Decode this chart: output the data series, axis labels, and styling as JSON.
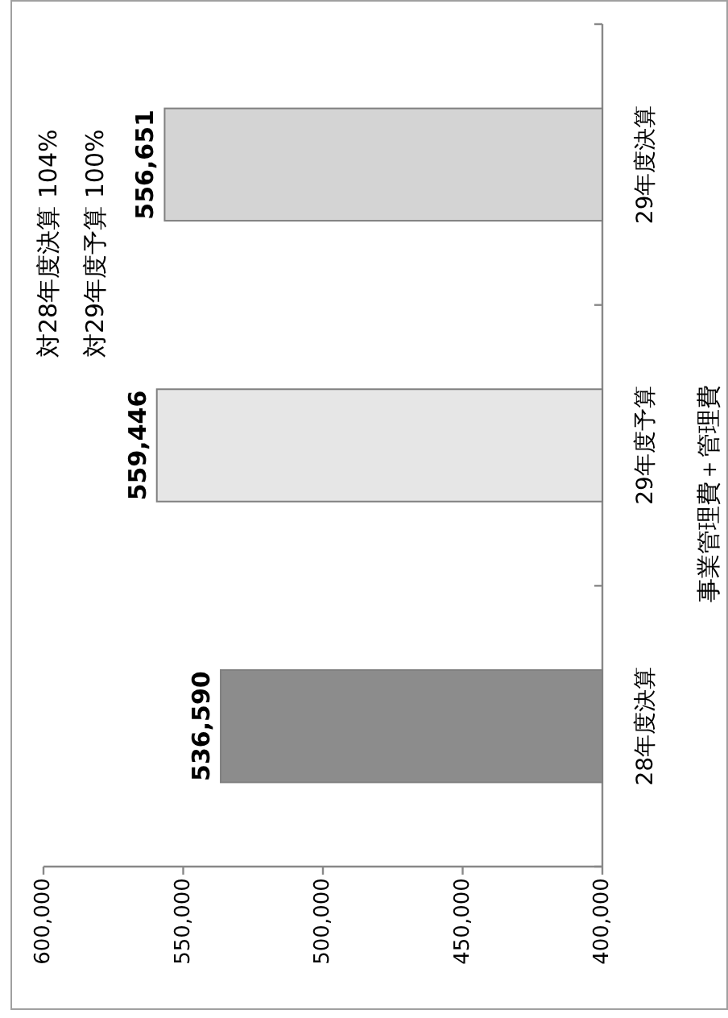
{
  "chart_data": {
    "type": "bar",
    "orientation": "horizontal",
    "ylabel": "事業管理費＋管理費",
    "categories": [
      "29年度決算",
      "29年度予算",
      "28年度決算"
    ],
    "values": [
      556651,
      559446,
      536590
    ],
    "value_labels": [
      "556,651",
      "559,446",
      "536,590"
    ],
    "colors": [
      "#d4d4d4",
      "#e6e6e6",
      "#8c8c8c"
    ],
    "xlim": [
      600000,
      400000
    ],
    "xticks": [
      {
        "value": 600000,
        "label": "600,000"
      },
      {
        "value": 550000,
        "label": "550,000"
      },
      {
        "value": 500000,
        "label": "500,000"
      },
      {
        "value": 450000,
        "label": "450,000"
      },
      {
        "value": 400000,
        "label": "400,000"
      }
    ],
    "annotations": [
      "対28年度決算 104%",
      "対29年度予算 100%"
    ]
  }
}
